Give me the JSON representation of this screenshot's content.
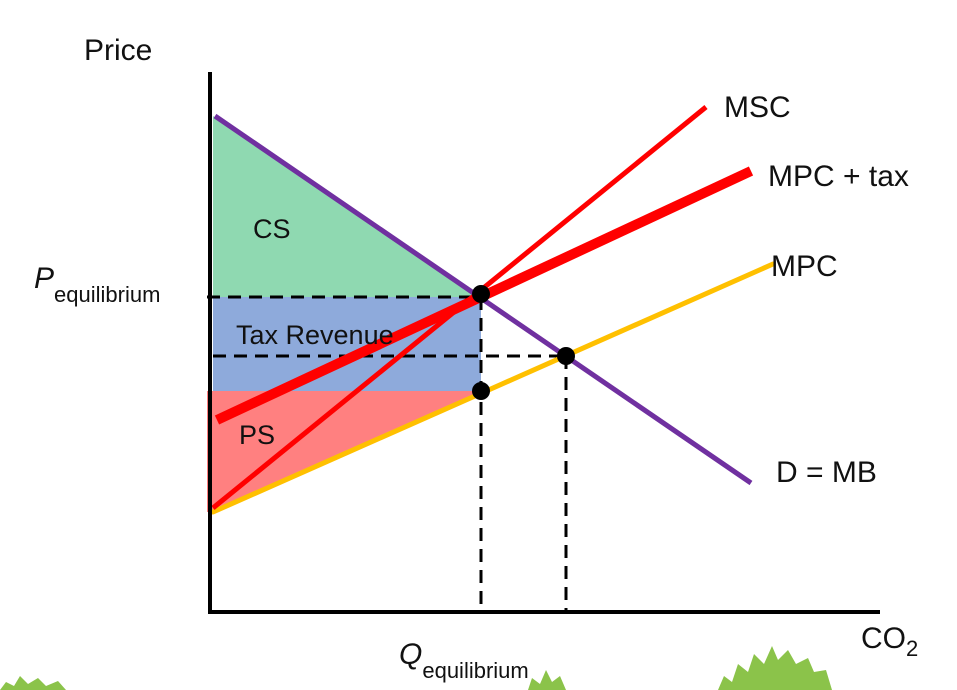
{
  "axes": {
    "y_label": "Price",
    "x_label": "CO",
    "x_label_sub": "2"
  },
  "markers": {
    "p_eq_main": "P",
    "p_eq_sub": "equilibrium",
    "q_eq_main": "Q",
    "q_eq_sub": "equilibrium"
  },
  "regions": {
    "cs": "CS",
    "tax_revenue": "Tax Revenue",
    "ps": "PS"
  },
  "curves": {
    "msc": "MSC",
    "mpc_tax": "MPC + tax",
    "mpc": "MPC",
    "demand": "D = MB"
  },
  "colors": {
    "demand": "#7030a0",
    "msc": "#ff0000",
    "mpc_tax": "#ff0000",
    "mpc": "#ffc000",
    "cs_fill": "#8fd9b1",
    "tax_fill": "#8eaadb",
    "ps_fill": "#ff8080",
    "foliage": "#8bc34a"
  }
}
